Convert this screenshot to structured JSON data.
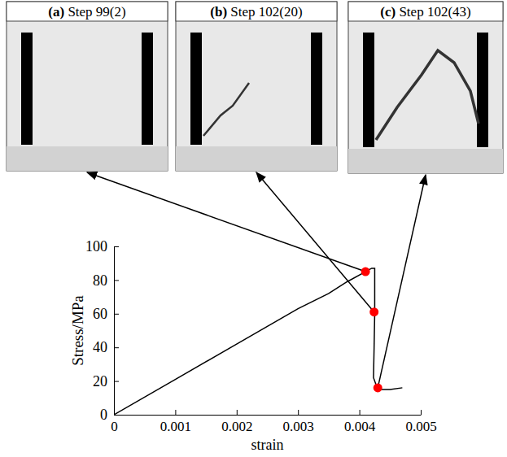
{
  "chart_data": {
    "type": "line",
    "x_label": "strain",
    "y_label": "Stress/MPa",
    "xlim": [
      0,
      0.005
    ],
    "xticks": [
      0,
      0.001,
      0.002,
      0.003,
      0.004,
      0.005
    ],
    "ylim": [
      0,
      100
    ],
    "yticks": [
      0,
      20,
      40,
      60,
      80,
      100
    ],
    "grid": false,
    "series": [
      {
        "type": "line",
        "color": "#000000",
        "line_style": "solid",
        "x": [
          0,
          0.001,
          0.002,
          0.003,
          0.0035,
          0.0038,
          0.0041,
          0.0042,
          0.00425,
          0.00425,
          0.00424,
          0.00423,
          0.0043,
          0.0045,
          0.0047
        ],
        "values": [
          0,
          21,
          42,
          63,
          72,
          79,
          85,
          87,
          87,
          60,
          40,
          22,
          15,
          15,
          16
        ]
      },
      {
        "type": "scatter",
        "color": "#ff0000",
        "marker": "circle",
        "x": [
          0.0041,
          0.00424,
          0.0043
        ],
        "values": [
          85,
          61,
          16
        ],
        "panels": [
          {
            "letter": "(a)",
            "title": "Step 99(2)"
          },
          {
            "letter": "(b)",
            "title": "Step 102(20)"
          },
          {
            "letter": "(c)",
            "title": "Step 102(43)"
          }
        ]
      }
    ]
  }
}
